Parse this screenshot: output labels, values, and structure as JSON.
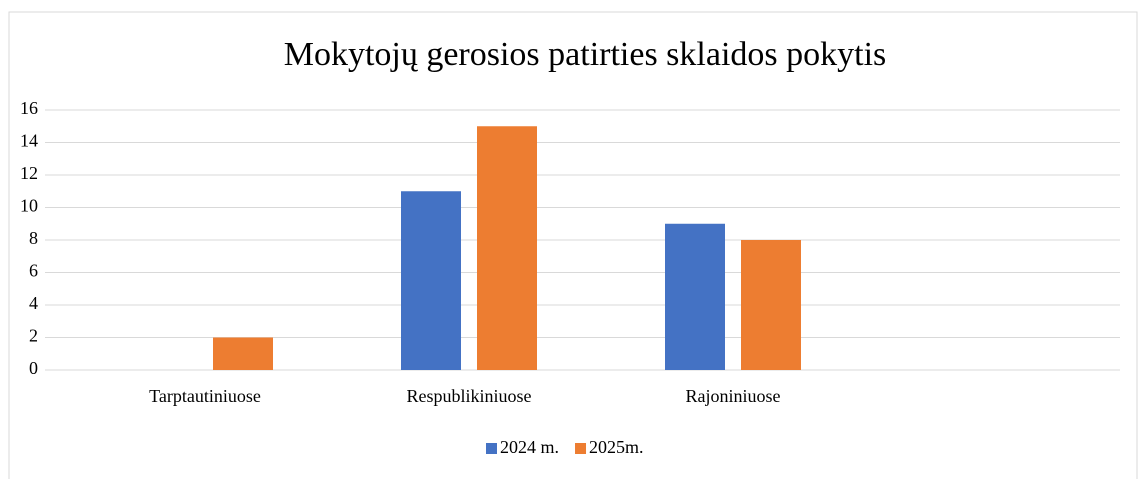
{
  "chart_data": {
    "type": "bar",
    "title": "Mokytojų gerosios patirties sklaidos pokytis",
    "categories": [
      "Tarptautiniuose",
      "Respublikiniuose",
      "Rajoniniuose",
      null
    ],
    "series": [
      {
        "name": "2024 m.",
        "color": "#4472c4",
        "values": [
          0,
          11,
          9,
          null
        ]
      },
      {
        "name": "2025m.",
        "color": "#ed7d31",
        "values": [
          2,
          15,
          8,
          null
        ]
      }
    ],
    "ylim": [
      0,
      16
    ],
    "yticks": [
      0,
      2,
      4,
      6,
      8,
      10,
      12,
      14,
      16
    ],
    "grid": true,
    "legend": "bottom"
  }
}
